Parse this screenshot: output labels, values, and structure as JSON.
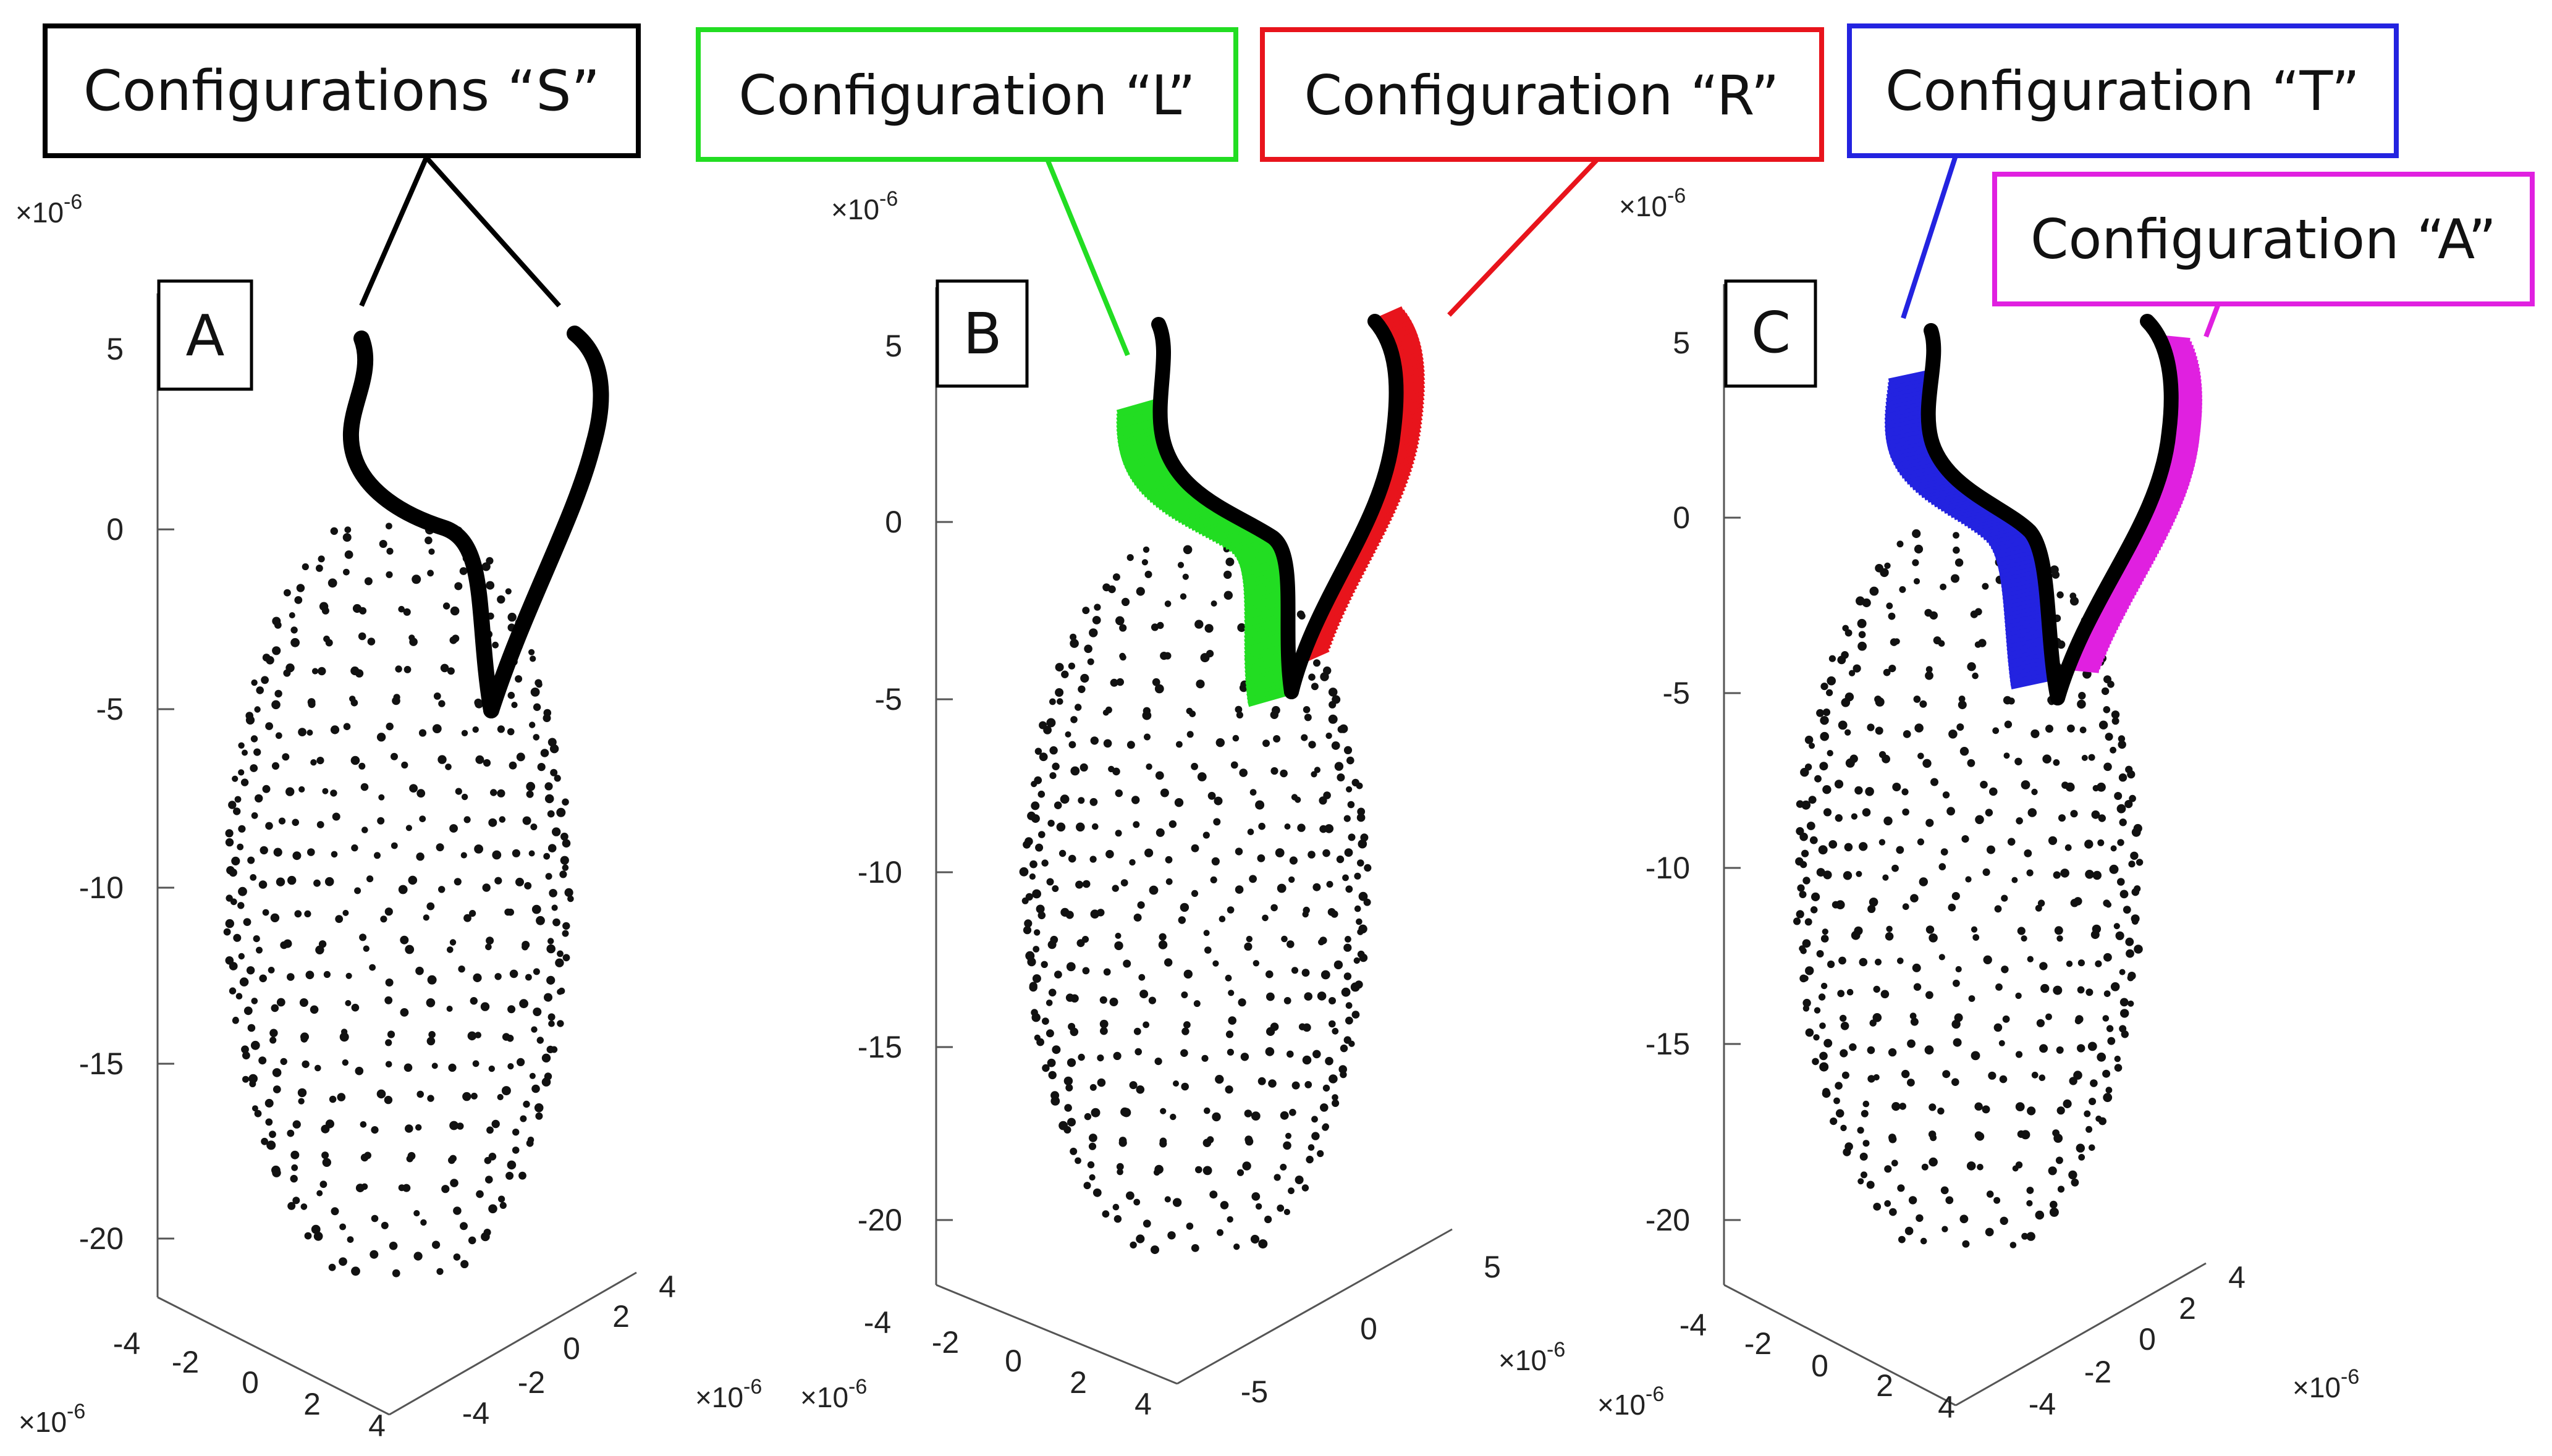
{
  "figure": {
    "description_free": true,
    "panels": [
      {
        "id": "A",
        "letter": "A",
        "exponent": "×10",
        "exp_power": "-6",
        "z_ticks": [
          "5",
          "0",
          "-5",
          "-10",
          "-15",
          "-20"
        ],
        "x_ticks": [
          "-4",
          "-2",
          "0",
          "2",
          "4"
        ],
        "y_ticks": [
          "-4",
          "-2",
          "0",
          "2",
          "4"
        ]
      },
      {
        "id": "B",
        "letter": "B",
        "exponent": "×10",
        "exp_power": "-6",
        "z_ticks": [
          "5",
          "0",
          "-5",
          "-10",
          "-15",
          "-20"
        ],
        "x_ticks": [
          "-4",
          "-2",
          "0",
          "2",
          "4"
        ],
        "y_ticks": [
          "-5",
          "0",
          "5"
        ]
      },
      {
        "id": "C",
        "letter": "C",
        "exponent": "×10",
        "exp_power": "-6",
        "z_ticks": [
          "5",
          "0",
          "-5",
          "-10",
          "-15",
          "-20"
        ],
        "x_ticks": [
          "-4",
          "-2",
          "0",
          "2",
          "4"
        ],
        "y_ticks": [
          "-4",
          "-2",
          "0",
          "2",
          "4"
        ]
      }
    ],
    "labels": {
      "S": {
        "text": "Configurations “S”",
        "color": "#000000"
      },
      "L": {
        "text": "Configuration “L”",
        "color": "#22dd22"
      },
      "R": {
        "text": "Configuration “R”",
        "color": "#e8141c"
      },
      "T": {
        "text": "Configuration “T”",
        "color": "#2323e0"
      },
      "A": {
        "text": "Configuration “A”",
        "color": "#e020e0"
      }
    },
    "colors": {
      "body_dots": "#111111",
      "flagella": "#000000",
      "L": "#22dd22",
      "R": "#e8141c",
      "T": "#2323e0",
      "A": "#e020e0"
    }
  }
}
